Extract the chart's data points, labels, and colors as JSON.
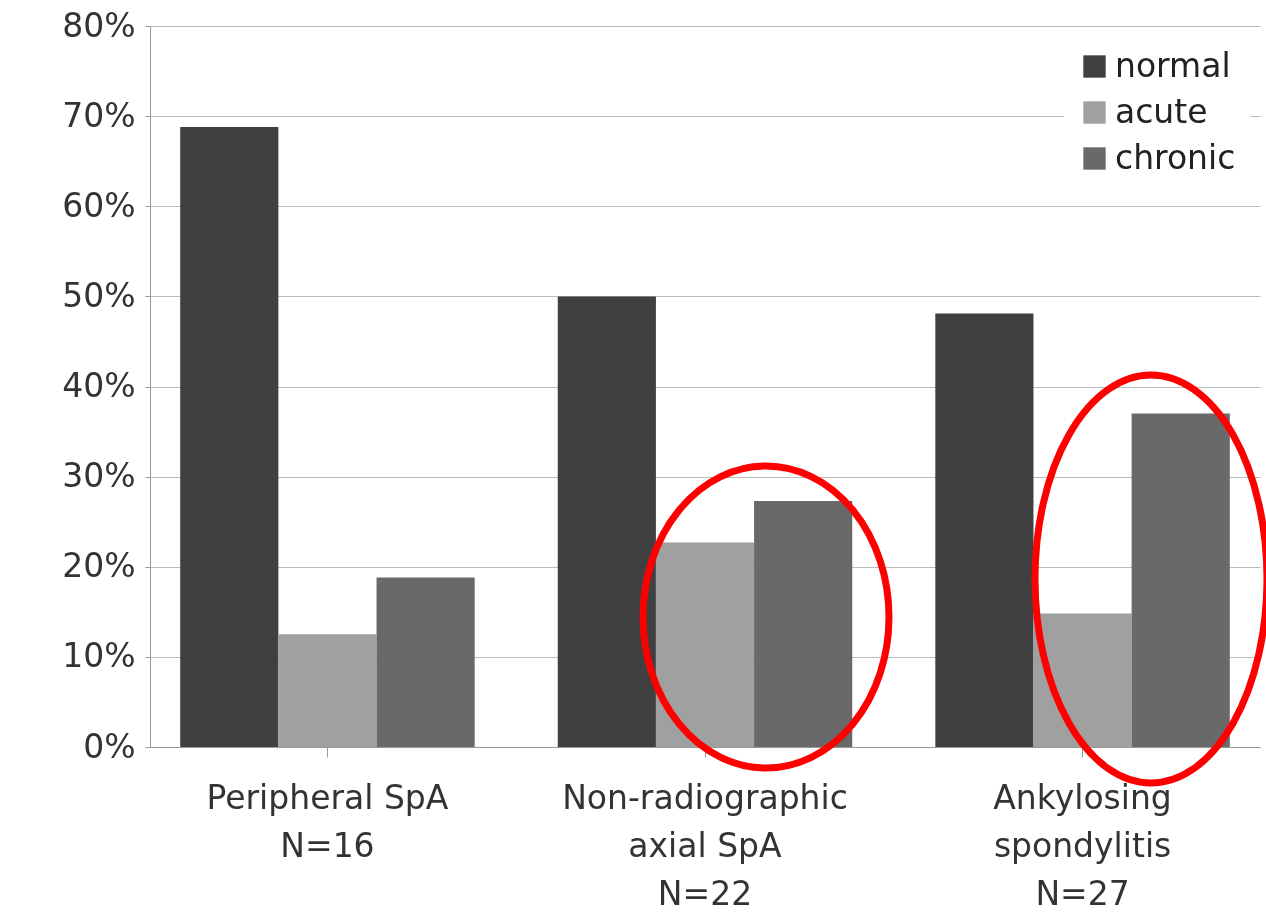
{
  "chart_data": {
    "type": "bar",
    "categories": [
      "Peripheral SpA\n\nN=16",
      "Non-radiographic\naxial SpA\nN=22",
      "Ankylosing\nspondylitis\nN=27"
    ],
    "series": [
      {
        "name": "normal",
        "color": "#404040",
        "values": [
          68.8,
          50,
          48.1
        ]
      },
      {
        "name": "acute",
        "color": "#a0a0a0",
        "values": [
          12.5,
          22.7,
          14.8
        ]
      },
      {
        "name": "chronic",
        "color": "#696969",
        "values": [
          18.8,
          27.3,
          37
        ]
      }
    ],
    "ylim": [
      0,
      80
    ],
    "yticks": [
      {
        "value": 0,
        "label": "0%"
      },
      {
        "value": 10,
        "label": "10%"
      },
      {
        "value": 20,
        "label": "20%"
      },
      {
        "value": 30,
        "label": "30%"
      },
      {
        "value": 40,
        "label": "40%"
      },
      {
        "value": 50,
        "label": "50%"
      },
      {
        "value": 60,
        "label": "60%"
      },
      {
        "value": 70,
        "label": "70%"
      },
      {
        "value": 80,
        "label": "80%"
      }
    ],
    "grid": "y",
    "legend": "top right"
  }
}
